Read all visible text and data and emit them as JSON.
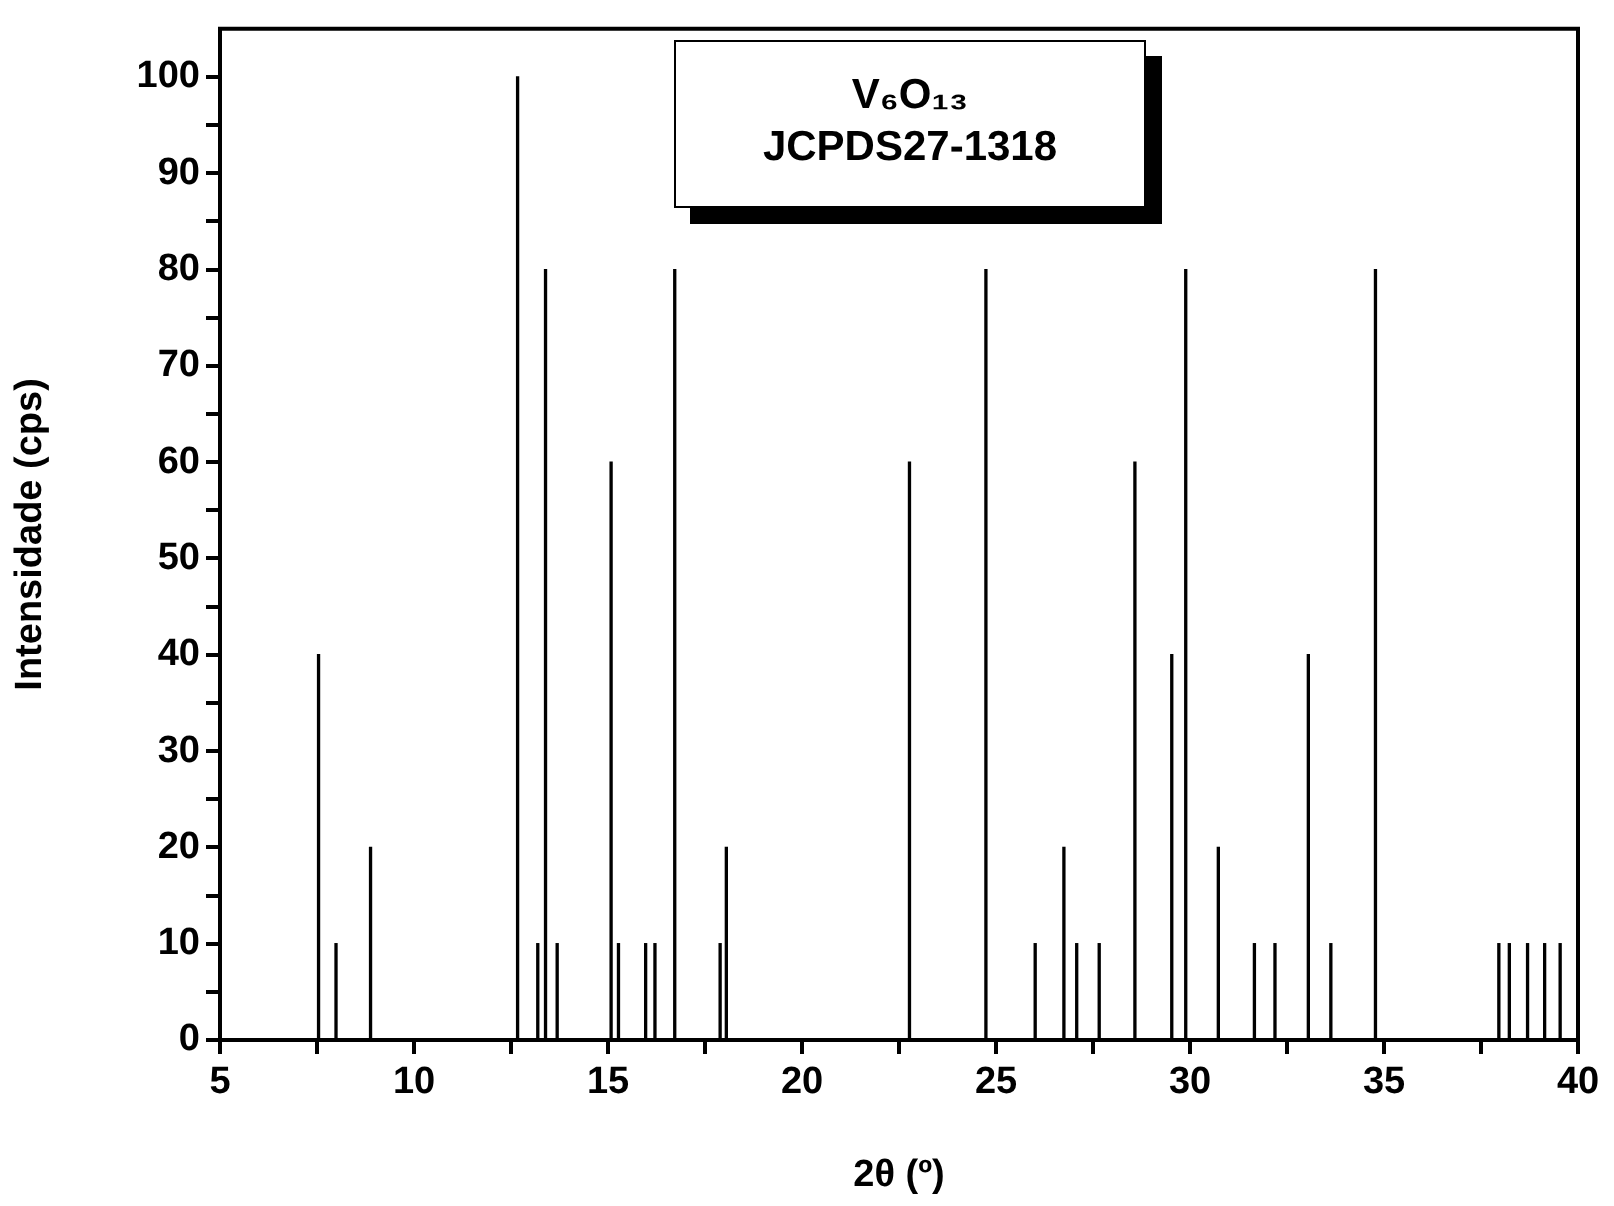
{
  "chart_data": {
    "type": "bar",
    "xlabel": "2θ (º)",
    "ylabel": "Intensidade (cps)",
    "annotations": [
      "V₆O₁₃",
      "JCPDS27-1318"
    ],
    "x": [
      7.54,
      7.99,
      8.88,
      12.67,
      13.19,
      13.39,
      13.69,
      15.08,
      15.27,
      15.97,
      16.21,
      16.72,
      17.89,
      18.05,
      22.77,
      24.74,
      26.01,
      26.75,
      27.08,
      27.66,
      28.58,
      29.53,
      29.89,
      30.73,
      31.66,
      32.19,
      33.05,
      33.63,
      34.78,
      37.96,
      38.23,
      38.7,
      39.14,
      39.54
    ],
    "values": [
      40,
      10,
      20,
      100,
      10,
      80,
      10,
      60,
      10,
      10,
      10,
      80,
      10,
      20,
      60,
      80,
      10,
      20,
      10,
      10,
      60,
      40,
      80,
      20,
      10,
      10,
      40,
      10,
      80,
      10,
      10,
      10,
      10,
      10
    ],
    "color": "#000000",
    "xlim": [
      5,
      40
    ],
    "xticks": [
      5,
      {
        "value": 7.5,
        "label": null
      },
      10,
      {
        "value": 12.5,
        "label": null
      },
      15,
      {
        "value": 17.5,
        "label": null
      },
      20,
      {
        "value": 22.5,
        "label": null
      },
      25,
      {
        "value": 27.5,
        "label": null
      },
      30,
      {
        "value": 32.5,
        "label": null
      },
      35,
      {
        "value": 37.5,
        "label": null
      },
      40
    ],
    "ylim": [
      0,
      105
    ],
    "yticks": [
      0,
      {
        "value": 5,
        "label": null
      },
      10,
      {
        "value": 15,
        "label": null
      },
      20,
      {
        "value": 25,
        "label": null
      },
      30,
      {
        "value": 35,
        "label": null
      },
      40,
      {
        "value": 45,
        "label": null
      },
      50,
      {
        "value": 55,
        "label": null
      },
      60,
      {
        "value": 65,
        "label": null
      },
      70,
      {
        "value": 75,
        "label": null
      },
      80,
      {
        "value": 85,
        "label": null
      },
      90,
      {
        "value": 95,
        "label": null
      },
      100
    ],
    "grid": false,
    "legend": false
  }
}
